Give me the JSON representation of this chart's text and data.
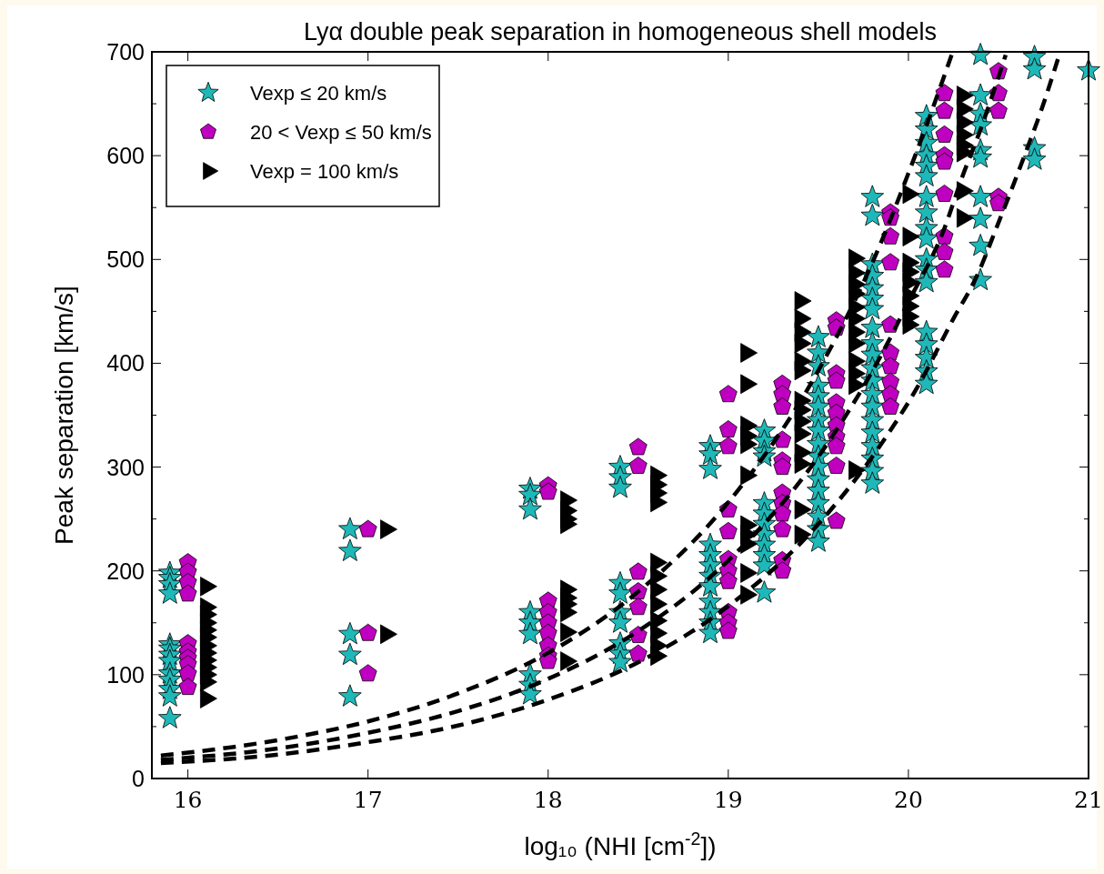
{
  "chart_data": {
    "type": "scatter",
    "title": "Lyα double peak separation in homogeneous shell models",
    "xlabel": "log₁₀ (NHI [cm$^{-2}$])",
    "ylabel": "Peak separation [km/s]",
    "xlim": [
      15.8,
      21
    ],
    "xticks": [
      16,
      17,
      18,
      19,
      20,
      21
    ],
    "ylim": [
      0,
      700
    ],
    "yticks": [
      0,
      {
        "value": 50,
        "label": null
      },
      100,
      {
        "value": 150,
        "label": null
      },
      200,
      {
        "value": 250,
        "label": null
      },
      300,
      {
        "value": 350,
        "label": null
      },
      400,
      {
        "value": 450,
        "label": null
      },
      500,
      {
        "value": 550,
        "label": null
      },
      600,
      {
        "value": 650,
        "label": null
      },
      700
    ],
    "legend": "top left",
    "grid": false,
    "series": [
      {
        "name": "Vexp ≤ 20 km/s",
        "marker": "star",
        "color": "#1fb8b8",
        "x": [
          15.9,
          15.9,
          15.9,
          15.9,
          15.9,
          15.9,
          15.9,
          15.9,
          15.9,
          15.9,
          15.9,
          15.9,
          15.9,
          16.9,
          16.9,
          16.9,
          16.9,
          16.9,
          17.9,
          17.9,
          17.9,
          17.9,
          17.9,
          17.9,
          17.9,
          17.9,
          17.9,
          18.4,
          18.4,
          18.4,
          18.4,
          18.4,
          18.4,
          18.4,
          18.4,
          18.4,
          18.4,
          18.9,
          18.9,
          18.9,
          18.9,
          18.9,
          18.9,
          18.9,
          18.9,
          18.9,
          18.9,
          18.9,
          18.9,
          19.2,
          19.2,
          19.2,
          19.2,
          19.2,
          19.2,
          19.2,
          19.2,
          19.2,
          19.2,
          19.2,
          19.2,
          19.5,
          19.5,
          19.5,
          19.5,
          19.5,
          19.5,
          19.5,
          19.5,
          19.5,
          19.5,
          19.5,
          19.5,
          19.5,
          19.5,
          19.5,
          19.5,
          19.5,
          19.8,
          19.8,
          19.8,
          19.8,
          19.8,
          19.8,
          19.8,
          19.8,
          19.8,
          19.8,
          19.8,
          19.8,
          19.8,
          19.8,
          19.8,
          19.8,
          19.8,
          19.8,
          19.8,
          19.8,
          20.1,
          20.1,
          20.1,
          20.1,
          20.1,
          20.1,
          20.1,
          20.1,
          20.1,
          20.1,
          20.1,
          20.1,
          20.1,
          20.1,
          20.1,
          20.1,
          20.1,
          20.1,
          20.4,
          20.4,
          20.4,
          20.4,
          20.4,
          20.4,
          20.4,
          20.4,
          20.4,
          20.4,
          20.7,
          20.7,
          20.7,
          20.7,
          21.0
        ],
        "values": [
          198,
          193,
          187,
          178,
          129,
          125,
          119,
          113,
          101,
          95,
          86,
          79,
          58,
          240,
          219,
          139,
          119,
          79,
          279,
          273,
          259,
          160,
          150,
          139,
          100,
          90,
          81,
          300,
          290,
          280,
          188,
          178,
          160,
          150,
          130,
          120,
          112,
          320,
          312,
          298,
          225,
          215,
          205,
          195,
          185,
          170,
          160,
          150,
          140,
          335,
          325,
          315,
          310,
          265,
          255,
          245,
          235,
          225,
          215,
          205,
          179,
          425,
          410,
          397,
          378,
          368,
          358,
          345,
          335,
          322,
          310,
          300,
          288,
          277,
          265,
          252,
          240,
          228,
          560,
          542,
          495,
          484,
          472,
          462,
          452,
          434,
          419,
          408,
          395,
          383,
          370,
          358,
          345,
          333,
          320,
          308,
          296,
          284,
          638,
          625,
          612,
          600,
          590,
          580,
          560,
          545,
          530,
          520,
          500,
          490,
          478,
          430,
          418,
          405,
          392,
          380,
          697,
          658,
          640,
          629,
          605,
          598,
          560,
          539,
          513,
          480,
          695,
          683,
          607,
          596,
          682
        ]
      },
      {
        "name": "20 < Vexp ≤ 50 km/s",
        "color": "#c000c0",
        "x": [
          16,
          16,
          16,
          16,
          16,
          16,
          16,
          16,
          16,
          16,
          17,
          17,
          17,
          18,
          18,
          18,
          18,
          18,
          18,
          18,
          18,
          18,
          18.5,
          18.5,
          18.5,
          18.5,
          18.5,
          18.5,
          18.5,
          19,
          19,
          19,
          19,
          19,
          19,
          19,
          19,
          19,
          19,
          19,
          19.3,
          19.3,
          19.3,
          19.3,
          19.3,
          19.3,
          19.3,
          19.3,
          19.3,
          19.3,
          19.3,
          19.3,
          19.6,
          19.6,
          19.6,
          19.6,
          19.6,
          19.6,
          19.6,
          19.6,
          19.6,
          19.6,
          19.6,
          19.9,
          19.9,
          19.9,
          19.9,
          19.9,
          19.9,
          19.9,
          19.9,
          19.9,
          19.9,
          20.2,
          20.2,
          20.2,
          20.2,
          20.2,
          20.2,
          20.2,
          20.2,
          20.2,
          20.5,
          20.5,
          20.5,
          20.5,
          20.5
        ],
        "values": [
          208,
          199,
          189,
          178,
          130,
          122,
          116,
          110,
          101,
          88,
          240,
          140,
          101,
          282,
          276,
          171,
          160,
          150,
          140,
          128,
          118,
          113,
          319,
          301,
          199,
          180,
          165,
          138,
          120,
          370,
          336,
          320,
          259,
          238,
          211,
          200,
          190,
          160,
          150,
          142,
          380,
          370,
          358,
          326,
          306,
          300,
          275,
          265,
          255,
          240,
          210,
          200,
          441,
          434,
          390,
          383,
          362,
          352,
          340,
          329,
          320,
          301,
          248,
          545,
          540,
          522,
          497,
          437,
          410,
          397,
          382,
          370,
          358,
          660,
          643,
          620,
          600,
          594,
          563,
          522,
          507,
          490,
          681,
          660,
          643,
          560,
          554
        ]
      },
      {
        "name": "Vexp = 100 km/s",
        "marker": "triangle-right",
        "color": "#000000",
        "x": [
          16.1,
          16.1,
          16.1,
          16.1,
          16.1,
          16.1,
          16.1,
          16.1,
          16.1,
          16.1,
          16.1,
          16.1,
          16.1,
          17.1,
          17.1,
          18.1,
          18.1,
          18.1,
          18.1,
          18.1,
          18.1,
          18.1,
          18.1,
          18.1,
          18.1,
          18.6,
          18.6,
          18.6,
          18.6,
          18.6,
          18.6,
          18.6,
          18.6,
          18.6,
          18.6,
          18.6,
          18.6,
          19.1,
          19.1,
          19.1,
          19.1,
          19.1,
          19.1,
          19.1,
          19.1,
          19.1,
          19.1,
          19.1,
          19.4,
          19.4,
          19.4,
          19.4,
          19.4,
          19.4,
          19.4,
          19.4,
          19.4,
          19.4,
          19.4,
          19.4,
          19.4,
          19.4,
          19.7,
          19.7,
          19.7,
          19.7,
          19.7,
          19.7,
          19.7,
          19.7,
          19.7,
          19.7,
          19.7,
          19.7,
          20.0,
          20.0,
          20.0,
          20.0,
          20.0,
          20.0,
          20.0,
          20.0,
          20.0,
          20.3,
          20.3,
          20.3,
          20.3,
          20.3,
          20.3,
          20.3,
          20.3
        ],
        "values": [
          185,
          165,
          158,
          150,
          143,
          136,
          128,
          121,
          114,
          107,
          100,
          93,
          77,
          240,
          139,
          268,
          258,
          250,
          245,
          182,
          174,
          168,
          160,
          141,
          113,
          292,
          283,
          275,
          266,
          208,
          195,
          182,
          168,
          152,
          140,
          128,
          118,
          410,
          380,
          340,
          330,
          322,
          292,
          244,
          235,
          226,
          198,
          177,
          460,
          443,
          430,
          419,
          402,
          393,
          364,
          355,
          344,
          332,
          314,
          303,
          259,
          235,
          501,
          487,
          476,
          467,
          454,
          443,
          430,
          419,
          402,
          390,
          379,
          297,
          563,
          522,
          497,
          488,
          478,
          465,
          455,
          445,
          437,
          658,
          645,
          632,
          620,
          610,
          603,
          566,
          540
        ]
      },
      {
        "type": "line",
        "marker": "none",
        "line_style": "dashed",
        "color": "#000000",
        "x": [
          15.85,
          16.5,
          17,
          17.5,
          18,
          18.5,
          19,
          19.5,
          19.84,
          20,
          20.1,
          20.24
        ],
        "values": [
          22,
          37,
          55,
          82,
          121,
          180,
          266,
          393,
          513,
          583,
          629,
          697
        ]
      },
      {
        "type": "line",
        "marker": "none",
        "line_style": "dashed",
        "color": "#000000",
        "x": [
          15.85,
          16.5,
          17,
          17.5,
          18,
          18.5,
          19,
          19.5,
          19.84,
          20,
          20.2,
          20.3,
          20.4,
          20.54
        ],
        "values": [
          18,
          29,
          44,
          65,
          96,
          142,
          210,
          310,
          405,
          459,
          530,
          580,
          625,
          697
        ]
      },
      {
        "type": "line",
        "marker": "none",
        "line_style": "dashed",
        "color": "#000000",
        "x": [
          15.85,
          16.5,
          17,
          17.5,
          18,
          18.5,
          19,
          19.5,
          19.84,
          20.05,
          20.25,
          20.38,
          20.49,
          20.64,
          20.74,
          20.83
        ],
        "values": [
          15,
          23,
          35,
          51,
          76,
          112,
          166,
          245,
          320,
          377,
          443,
          484,
          531,
          598,
          645,
          693
        ]
      }
    ]
  }
}
